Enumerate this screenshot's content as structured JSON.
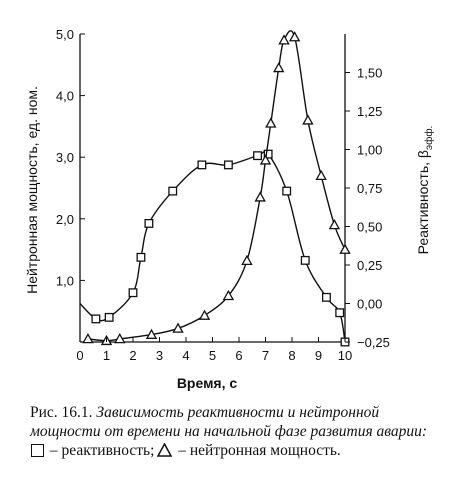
{
  "chart_data": {
    "type": "line",
    "x_label": "Время, с",
    "y_left_label": "Нейтронная мощность, ед. ном.",
    "y_right_label_main": "Реактивность, β",
    "y_right_label_sub": "эфф.",
    "x_ticks": [
      "0",
      "1",
      "2",
      "3",
      "4",
      "5",
      "6",
      "7",
      "8",
      "9",
      "10"
    ],
    "y_left_ticks": [
      "1,0",
      "2,0",
      "3,0",
      "4,0",
      "5,0"
    ],
    "y_right_ticks": [
      "−0,25",
      "0,00",
      "0,25",
      "0,50",
      "0,75",
      "1,00",
      "1,25",
      "1,50"
    ],
    "xlim": [
      0,
      10
    ],
    "y_left_lim": [
      0,
      5
    ],
    "y_right_lim": [
      -0.25,
      1.75
    ],
    "series": [
      {
        "marker": "square",
        "axis": "right",
        "x": [
          0.6,
          1.1,
          2.0,
          2.3,
          2.6,
          3.5,
          4.6,
          5.6,
          6.7,
          7.1,
          7.8,
          8.5,
          9.3,
          9.8,
          10.0
        ],
        "y": [
          -0.1,
          -0.09,
          0.07,
          0.3,
          0.52,
          0.73,
          0.9,
          0.9,
          0.96,
          0.97,
          0.73,
          0.28,
          0.04,
          -0.06,
          -0.25
        ]
      },
      {
        "marker": "triangle",
        "axis": "left",
        "x": [
          0.3,
          1.0,
          1.5,
          2.7,
          3.7,
          4.7,
          5.6,
          6.3,
          6.8,
          7.0,
          7.2,
          7.5,
          7.7,
          8.1,
          8.6,
          9.1,
          9.6,
          10.0
        ],
        "y": [
          0.05,
          0.02,
          0.05,
          0.12,
          0.22,
          0.43,
          0.75,
          1.32,
          2.35,
          2.95,
          3.55,
          4.45,
          4.9,
          4.95,
          3.6,
          2.7,
          1.9,
          1.5
        ]
      }
    ]
  },
  "caption": {
    "prefix": "Рис. 16.1. ",
    "italic_text": "Зависимость реактивности и нейтронной мощности от времени на начальной фазе развития аварии:",
    "legend_square_text": " – реактивность;",
    "legend_triangle_text": " – нейтронная мощность."
  }
}
